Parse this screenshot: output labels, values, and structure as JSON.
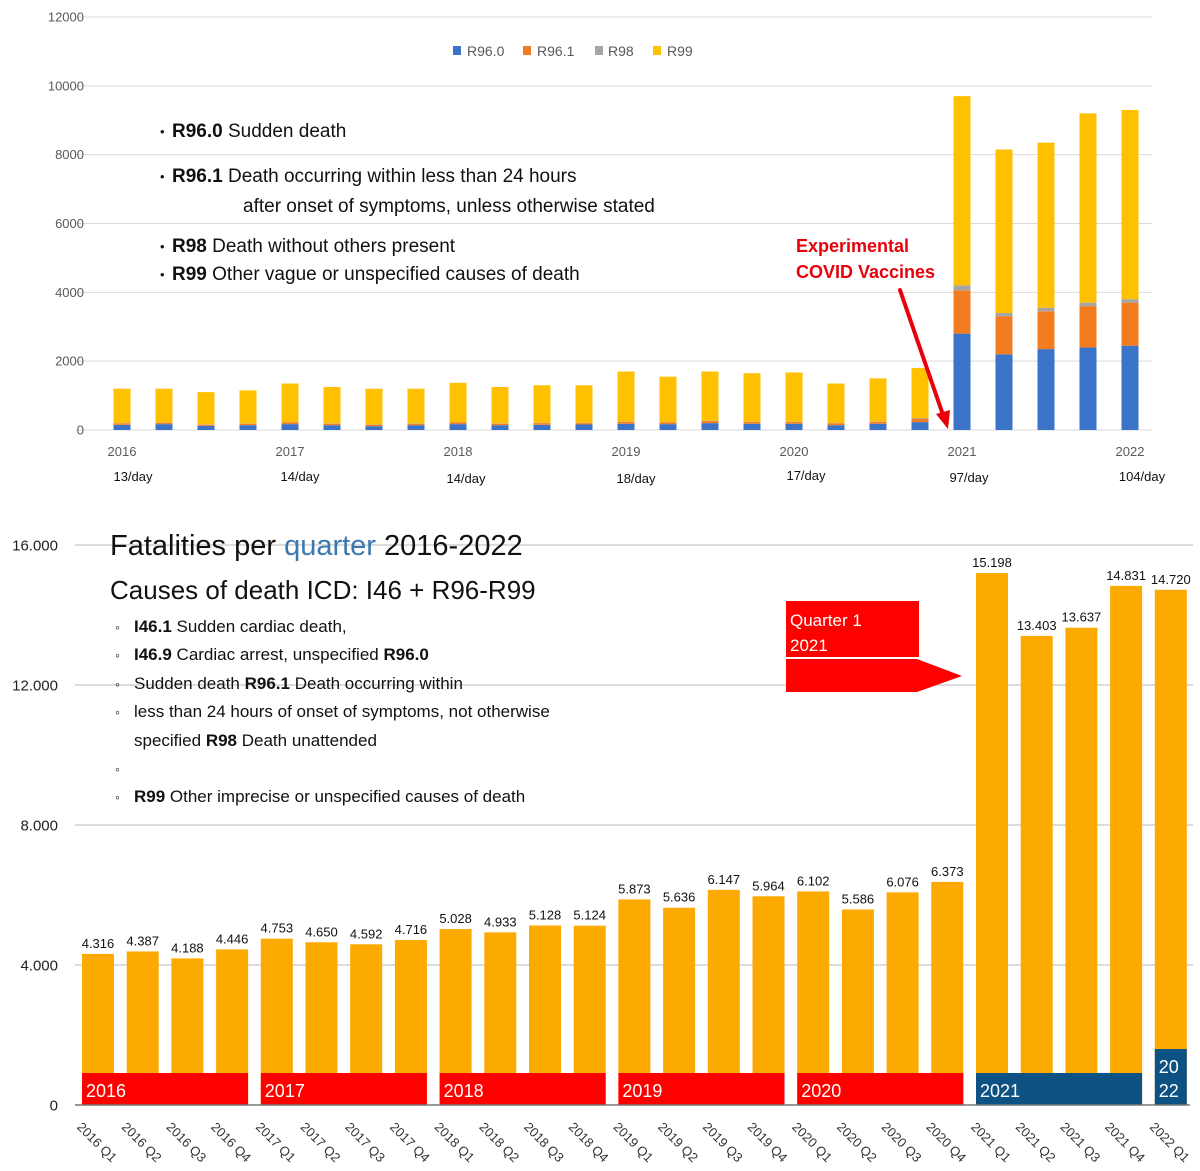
{
  "chart_data": [
    {
      "type": "bar",
      "stacked": true,
      "legend": {
        "position": "top"
      },
      "ylim": [
        0,
        12000
      ],
      "yticks": [
        "0",
        "2000",
        "4000",
        "6000",
        "8000",
        "10000",
        "12000"
      ],
      "grid": true,
      "x_ticks": [
        {
          "label": "2016",
          "index": 0
        },
        {
          "label": "2017",
          "index": 4
        },
        {
          "label": "2018",
          "index": 8
        },
        {
          "label": "2019",
          "index": 12
        },
        {
          "label": "2020",
          "index": 16
        },
        {
          "label": "2021",
          "index": 20
        },
        {
          "label": "2022",
          "index": 24
        }
      ],
      "rate_labels": [
        "13/day",
        "14/day",
        "14/day",
        "18/day",
        "17/day",
        "97/day",
        "104/day"
      ],
      "series": [
        {
          "name": "R96.0",
          "color": "#3a73c8",
          "values": [
            150,
            170,
            120,
            140,
            170,
            140,
            110,
            140,
            170,
            140,
            150,
            160,
            180,
            170,
            200,
            180,
            180,
            140,
            180,
            230,
            2800,
            2200,
            2350,
            2400,
            2450
          ]
        },
        {
          "name": "R96.1",
          "color": "#f47c20",
          "values": [
            40,
            40,
            35,
            35,
            50,
            40,
            40,
            40,
            50,
            40,
            50,
            40,
            60,
            50,
            60,
            50,
            50,
            50,
            60,
            100,
            1260,
            1100,
            1100,
            1200,
            1250
          ]
        },
        {
          "name": "R98",
          "color": "#a5a5a5",
          "values": [
            10,
            10,
            10,
            10,
            10,
            10,
            10,
            10,
            10,
            10,
            10,
            10,
            10,
            10,
            10,
            10,
            10,
            10,
            10,
            20,
            140,
            100,
            100,
            100,
            100
          ]
        },
        {
          "name": "R99",
          "color": "#ffc000",
          "values": [
            1000,
            980,
            935,
            965,
            1120,
            1060,
            1040,
            1010,
            1140,
            1060,
            1090,
            1090,
            1450,
            1320,
            1430,
            1410,
            1430,
            1150,
            1250,
            1450,
            5500,
            4750,
            4800,
            5500,
            5500
          ]
        }
      ],
      "notes": [
        {
          "bullet": true,
          "segments": [
            {
              "text": "R96.0",
              "bold": true
            },
            {
              "text": " Sudden death",
              "bold": false
            }
          ]
        },
        {
          "bullet": true,
          "segments": [
            {
              "text": "R96.1",
              "bold": true
            },
            {
              "text": " Death occurring within less than 24 hours",
              "bold": false
            }
          ]
        },
        {
          "bullet": false,
          "segments": [
            {
              "text": "after onset of symptoms, unless otherwise stated",
              "bold": false
            }
          ]
        },
        {
          "bullet": true,
          "segments": [
            {
              "text": "R98",
              "bold": true
            },
            {
              "text": " Death without others present",
              "bold": false
            }
          ]
        },
        {
          "bullet": true,
          "segments": [
            {
              "text": "R99",
              "bold": true
            },
            {
              "text": " Other vague or unspecified causes of death",
              "bold": false
            }
          ]
        }
      ],
      "callout": {
        "lines": [
          "Experimental",
          "COVID Vaccines"
        ],
        "color": "#e8000b"
      }
    },
    {
      "type": "bar",
      "title": {
        "before": "Fatalities per ",
        "highlight": "quarter",
        "after": " 2016-2022",
        "highlight_color": "#3b78b0"
      },
      "subtitle": "Causes of death ICD: I46 + R96-R99",
      "ylim": [
        0,
        16000
      ],
      "yticks": [
        "0",
        "4.000",
        "8.000",
        "12.000",
        "16.000"
      ],
      "grid": true,
      "bar_color": "#fcaa00",
      "categories": [
        "2016 Q1",
        "2016 Q2",
        "2016 Q3",
        "2016 Q4",
        "2017 Q1",
        "2017 Q2",
        "2017 Q3",
        "2017 Q4",
        "2018 Q1",
        "2018 Q2",
        "2018 Q3",
        "2018 Q4",
        "2019 Q1",
        "2019 Q2",
        "2019 Q3",
        "2019 Q4",
        "2020 Q1",
        "2020 Q2",
        "2020 Q3",
        "2020 Q4",
        "2021 Q1",
        "2021 Q2",
        "2021 Q3",
        "2021 Q4",
        "2022 Q1"
      ],
      "values": [
        4316,
        4387,
        4188,
        4446,
        4753,
        4650,
        4592,
        4716,
        5028,
        4933,
        5128,
        5124,
        5873,
        5636,
        6147,
        5964,
        6102,
        5586,
        6076,
        6373,
        15198,
        13403,
        13637,
        14831,
        14720
      ],
      "data_labels": [
        "4.316",
        "4.387",
        "4.188",
        "4.446",
        "4.753",
        "4.650",
        "4.592",
        "4.716",
        "5.028",
        "4.933",
        "5.128",
        "5.124",
        "5.873",
        "5.636",
        "6.147",
        "5.964",
        "6.102",
        "5.586",
        "6.076",
        "6.373",
        "15.198",
        "13.403",
        "13.637",
        "14.831",
        "14.720"
      ],
      "year_bands": [
        {
          "label": "2016",
          "color": "#ff0000"
        },
        {
          "label": "2017",
          "color": "#ff0000"
        },
        {
          "label": "2018",
          "color": "#ff0000"
        },
        {
          "label": "2019",
          "color": "#ff0000"
        },
        {
          "label": "2020",
          "color": "#ff0000"
        },
        {
          "label": "2021",
          "color": "#0d5283"
        }
      ],
      "year_band_2022": {
        "lines": [
          "20",
          "22"
        ],
        "color": "#0d5283"
      },
      "notes": [
        {
          "bullet": true,
          "segments": [
            {
              "text": "I46.1",
              "bold": true
            },
            {
              "text": " Sudden cardiac death,",
              "bold": false
            }
          ]
        },
        {
          "bullet": true,
          "segments": [
            {
              "text": "I46.9",
              "bold": true
            },
            {
              "text": " Cardiac arrest, unspecified ",
              "bold": false
            },
            {
              "text": "R96.0",
              "bold": true
            }
          ]
        },
        {
          "bullet": true,
          "segments": [
            {
              "text": "Sudden death ",
              "bold": false
            },
            {
              "text": "R96.1",
              "bold": true
            },
            {
              "text": " Death occurring within",
              "bold": false
            }
          ]
        },
        {
          "bullet": true,
          "segments": [
            {
              "text": "less than 24 hours of onset of symptoms, not otherwise",
              "bold": false
            }
          ]
        },
        {
          "bullet": false,
          "segments": [
            {
              "text": "specified ",
              "bold": false
            },
            {
              "text": "R98",
              "bold": true
            },
            {
              "text": " Death unattended",
              "bold": false
            }
          ]
        },
        {
          "bullet": true,
          "segments": []
        },
        {
          "bullet": true,
          "segments": [
            {
              "text": "R99",
              "bold": true
            },
            {
              "text": " Other imprecise or unspecified causes of death",
              "bold": false
            }
          ]
        }
      ],
      "callout": {
        "lines": [
          "Quarter 1",
          "2021"
        ],
        "color": "#ff0000"
      }
    }
  ]
}
